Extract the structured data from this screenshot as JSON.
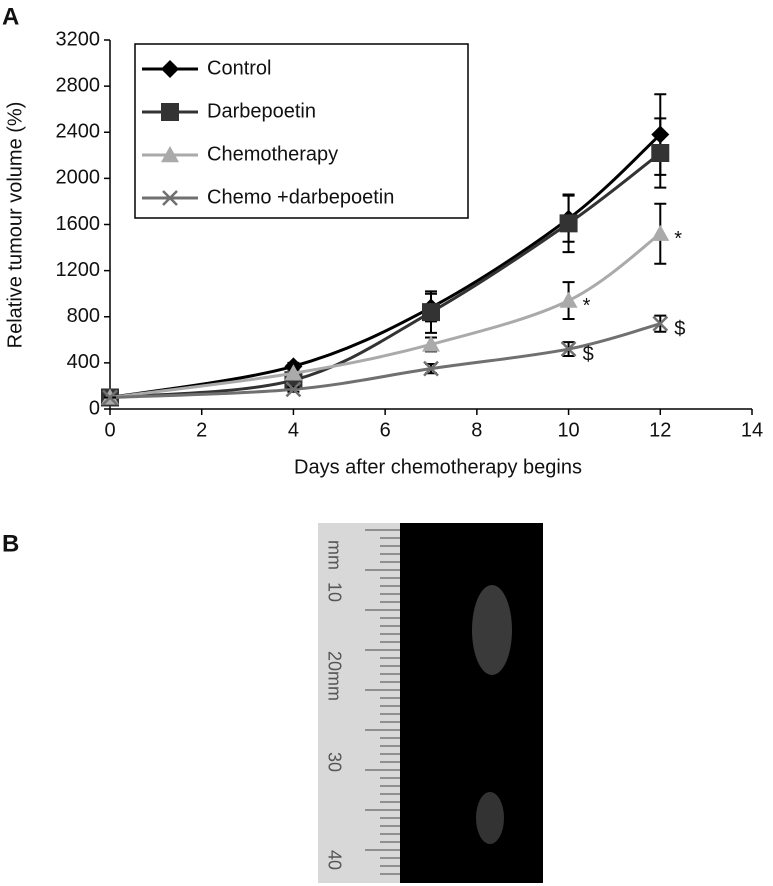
{
  "panel_labels": [
    "A",
    "B"
  ],
  "chart_data": {
    "type": "line",
    "x_label": "Days after chemotherapy begins",
    "y_label": "Relative tumour volume (%)",
    "x": [
      0,
      4,
      7,
      10,
      12
    ],
    "xlim": [
      0,
      14
    ],
    "xticks": [
      0,
      2,
      4,
      6,
      8,
      10,
      12,
      14
    ],
    "ylim": [
      0,
      3200
    ],
    "yticks": [
      0,
      400,
      800,
      1200,
      1600,
      2000,
      2400,
      2800,
      3200
    ],
    "legend": "upper-left",
    "series": [
      {
        "name": "Control",
        "color": "#000000",
        "marker": "diamond",
        "values": [
          100,
          370,
          880,
          1650,
          2380
        ],
        "errors": [
          0,
          30,
          120,
          200,
          350
        ]
      },
      {
        "name": "Darbepoetin",
        "color": "#333333",
        "marker": "square",
        "values": [
          100,
          250,
          840,
          1610,
          2220
        ],
        "errors": [
          0,
          30,
          180,
          250,
          300
        ]
      },
      {
        "name": "Chemotherapy",
        "color": "#aaaaaa",
        "marker": "triangle",
        "values": [
          100,
          310,
          560,
          940,
          1520
        ],
        "errors": [
          0,
          40,
          60,
          160,
          260
        ]
      },
      {
        "name": "Chemo +darbepoetin",
        "color": "#707070",
        "marker": "cross",
        "values": [
          100,
          170,
          350,
          520,
          740
        ],
        "errors": [
          0,
          20,
          40,
          60,
          70
        ]
      }
    ],
    "annotations": [
      {
        "text": "*",
        "x": 10,
        "y": 940
      },
      {
        "text": "*",
        "x": 12,
        "y": 1520
      },
      {
        "text": "$",
        "x": 10,
        "y": 520
      },
      {
        "text": "$",
        "x": 12,
        "y": 740
      }
    ]
  },
  "photo": {
    "ruler_labels": [
      "mm",
      "10",
      "20mm",
      "30",
      "40"
    ]
  }
}
